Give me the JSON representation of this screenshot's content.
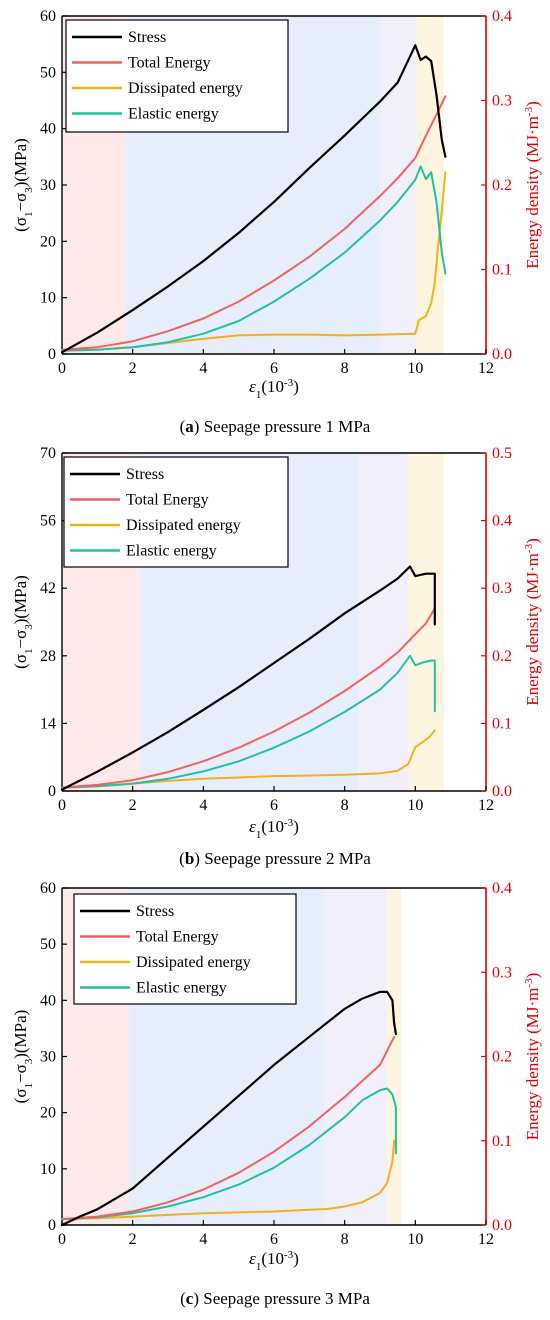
{
  "figure": {
    "left_axis_title": "(σ1−σ3)(MPa)",
    "right_axis_title": "Energy density (MJ·m-3)",
    "x_axis_title": "ε1(10-3)"
  },
  "colors": {
    "stress": "#000000",
    "total": "#f0625a",
    "dissipated": "#f0b020",
    "elastic": "#20c0a8",
    "right_axis": "#e00000",
    "zone_pink": "#fde9ea",
    "zone_blue": "#e6eefb",
    "zone_lavender": "#f1effa",
    "zone_yellow": "#fdf5df"
  },
  "chart_data": [
    {
      "type": "line",
      "caption_label": "a",
      "caption_text": "Seepage pressure 1 MPa",
      "xlabel": "ε1(10-3)",
      "ylabel": "(σ1−σ3)(MPa)",
      "y2label": "Energy density (MJ·m-3)",
      "xlim": [
        0,
        12
      ],
      "ylim": [
        0,
        60
      ],
      "y2lim": [
        0,
        0.4
      ],
      "xticks": [
        0,
        2,
        4,
        6,
        8,
        10,
        12
      ],
      "yticks": [
        0,
        10,
        20,
        30,
        40,
        50,
        60
      ],
      "y2ticks": [
        0.0,
        0.1,
        0.2,
        0.3,
        0.4
      ],
      "legend": "top-left",
      "zones": [
        [
          0,
          1.8
        ],
        [
          1.8,
          9.0
        ],
        [
          9.0,
          10.0
        ],
        [
          10.0,
          10.8
        ]
      ],
      "series": [
        {
          "name": "Stress",
          "axis": "left",
          "x": [
            0,
            1,
            2,
            3,
            4,
            5,
            6,
            7,
            8,
            9,
            9.5,
            10.0,
            10.15,
            10.3,
            10.45,
            10.6,
            10.75,
            10.85
          ],
          "y": [
            0.3,
            3.8,
            7.8,
            12.0,
            16.5,
            21.5,
            27.0,
            33.0,
            38.8,
            44.8,
            48.2,
            54.8,
            52.2,
            52.8,
            52.0,
            46.0,
            38.0,
            35.0
          ]
        },
        {
          "name": "Total Energy",
          "axis": "right",
          "x": [
            0,
            1,
            2,
            3,
            4,
            5,
            6,
            7,
            8,
            9,
            9.5,
            10.0,
            10.2,
            10.5,
            10.85
          ],
          "y": [
            0.005,
            0.008,
            0.015,
            0.027,
            0.042,
            0.062,
            0.087,
            0.115,
            0.148,
            0.187,
            0.208,
            0.232,
            0.25,
            0.275,
            0.305
          ]
        },
        {
          "name": "Dissipated energy",
          "axis": "right",
          "x": [
            0,
            1,
            2,
            3,
            4,
            5,
            6,
            7,
            8,
            9,
            10.0,
            10.1,
            10.3,
            10.45,
            10.55,
            10.65,
            10.75,
            10.85
          ],
          "y": [
            0.004,
            0.005,
            0.008,
            0.013,
            0.018,
            0.022,
            0.023,
            0.023,
            0.022,
            0.023,
            0.024,
            0.04,
            0.045,
            0.06,
            0.085,
            0.13,
            0.17,
            0.215
          ]
        },
        {
          "name": "Elastic energy",
          "axis": "right",
          "x": [
            0,
            1,
            2,
            3,
            4,
            5,
            6,
            7,
            8,
            9,
            9.5,
            10.0,
            10.15,
            10.3,
            10.45,
            10.6,
            10.75,
            10.85
          ],
          "y": [
            0.004,
            0.005,
            0.008,
            0.014,
            0.024,
            0.039,
            0.062,
            0.089,
            0.12,
            0.158,
            0.18,
            0.206,
            0.222,
            0.207,
            0.215,
            0.18,
            0.12,
            0.095
          ]
        }
      ]
    },
    {
      "type": "line",
      "caption_label": "b",
      "caption_text": "Seepage pressure 2 MPa",
      "xlabel": "ε1(10-3)",
      "ylabel": "(σ1−σ3)(MPa)",
      "y2label": "Energy density (MJ·m-3)",
      "xlim": [
        0,
        12
      ],
      "ylim": [
        0,
        70
      ],
      "y2lim": [
        0,
        0.5
      ],
      "xticks": [
        0,
        2,
        4,
        6,
        8,
        10,
        12
      ],
      "yticks": [
        0,
        14,
        28,
        42,
        56,
        70
      ],
      "y2ticks": [
        0.0,
        0.1,
        0.2,
        0.3,
        0.4,
        0.5
      ],
      "legend": "top-left",
      "zones": [
        [
          0,
          2.2
        ],
        [
          2.2,
          8.4
        ],
        [
          8.4,
          9.8
        ],
        [
          9.8,
          10.8
        ]
      ],
      "series": [
        {
          "name": "Stress",
          "axis": "left",
          "x": [
            0,
            1,
            2,
            3,
            4,
            5,
            6,
            7,
            8,
            9,
            9.5,
            9.85,
            10.0,
            10.3,
            10.55,
            10.55
          ],
          "y": [
            0.3,
            4.0,
            8.0,
            12.2,
            16.8,
            21.5,
            26.5,
            31.5,
            36.8,
            41.5,
            44.0,
            46.5,
            44.5,
            45.0,
            45.0,
            34.5
          ]
        },
        {
          "name": "Total Energy",
          "axis": "right",
          "x": [
            0,
            1,
            2,
            3,
            4,
            5,
            6,
            7,
            8,
            9,
            9.5,
            10.0,
            10.3,
            10.55
          ],
          "y": [
            0.005,
            0.009,
            0.016,
            0.028,
            0.044,
            0.064,
            0.088,
            0.116,
            0.148,
            0.184,
            0.205,
            0.232,
            0.248,
            0.27
          ]
        },
        {
          "name": "Dissipated energy",
          "axis": "right",
          "x": [
            0,
            1,
            2,
            3,
            4,
            5,
            6,
            7,
            8,
            9,
            9.5,
            9.8,
            10.0,
            10.2,
            10.4,
            10.55
          ],
          "y": [
            0.005,
            0.007,
            0.011,
            0.015,
            0.018,
            0.02,
            0.022,
            0.023,
            0.024,
            0.026,
            0.03,
            0.04,
            0.065,
            0.072,
            0.08,
            0.09
          ]
        },
        {
          "name": "Elastic energy",
          "axis": "right",
          "x": [
            0,
            1,
            2,
            3,
            4,
            5,
            6,
            7,
            8,
            9,
            9.5,
            9.85,
            10.0,
            10.2,
            10.45,
            10.55,
            10.55
          ],
          "y": [
            0.005,
            0.007,
            0.011,
            0.018,
            0.029,
            0.044,
            0.064,
            0.088,
            0.117,
            0.15,
            0.175,
            0.2,
            0.186,
            0.19,
            0.193,
            0.193,
            0.118
          ]
        }
      ]
    },
    {
      "type": "line",
      "caption_label": "c",
      "caption_text": "Seepage pressure 3 MPa",
      "xlabel": "ε1(10-3)",
      "ylabel": "(σ1−σ3)(MPa)",
      "y2label": "Energy density (MJ·m-3)",
      "xlim": [
        0,
        12
      ],
      "ylim": [
        0,
        60
      ],
      "y2lim": [
        0,
        0.4
      ],
      "xticks": [
        0,
        2,
        4,
        6,
        8,
        10,
        12
      ],
      "yticks": [
        0,
        10,
        20,
        30,
        40,
        50,
        60
      ],
      "y2ticks": [
        0.0,
        0.1,
        0.2,
        0.3,
        0.4
      ],
      "legend": "top-left",
      "zones": [
        [
          0,
          1.9
        ],
        [
          1.9,
          7.4
        ],
        [
          7.4,
          9.2
        ],
        [
          9.2,
          9.6
        ]
      ],
      "series": [
        {
          "name": "Stress",
          "axis": "left",
          "x": [
            0,
            0.5,
            1,
            2,
            3,
            4,
            5,
            6,
            7,
            7.5,
            8,
            8.5,
            9.0,
            9.2,
            9.35,
            9.4,
            9.45
          ],
          "y": [
            0.0,
            1.5,
            2.8,
            6.5,
            12.0,
            17.5,
            23.0,
            28.5,
            33.5,
            36.0,
            38.5,
            40.3,
            41.5,
            41.5,
            40.0,
            36.0,
            34.0
          ]
        },
        {
          "name": "Total Energy",
          "axis": "right",
          "x": [
            0,
            1,
            2,
            3,
            4,
            5,
            6,
            7,
            8,
            9,
            9.4
          ],
          "y": [
            0.007,
            0.01,
            0.016,
            0.027,
            0.042,
            0.062,
            0.087,
            0.117,
            0.152,
            0.19,
            0.223
          ]
        },
        {
          "name": "Dissipated energy",
          "axis": "right",
          "x": [
            0,
            1,
            2,
            3,
            4,
            5,
            6,
            7,
            7.5,
            8,
            8.5,
            9.0,
            9.2,
            9.35,
            9.4
          ],
          "y": [
            0.007,
            0.008,
            0.01,
            0.012,
            0.014,
            0.015,
            0.016,
            0.018,
            0.019,
            0.022,
            0.027,
            0.038,
            0.05,
            0.075,
            0.1
          ]
        },
        {
          "name": "Elastic energy",
          "axis": "right",
          "x": [
            0,
            1,
            2,
            3,
            4,
            5,
            6,
            7,
            8,
            8.5,
            9.0,
            9.2,
            9.35,
            9.45,
            9.45
          ],
          "y": [
            0.007,
            0.009,
            0.014,
            0.022,
            0.033,
            0.048,
            0.068,
            0.095,
            0.128,
            0.148,
            0.16,
            0.162,
            0.155,
            0.14,
            0.085
          ]
        }
      ]
    }
  ]
}
